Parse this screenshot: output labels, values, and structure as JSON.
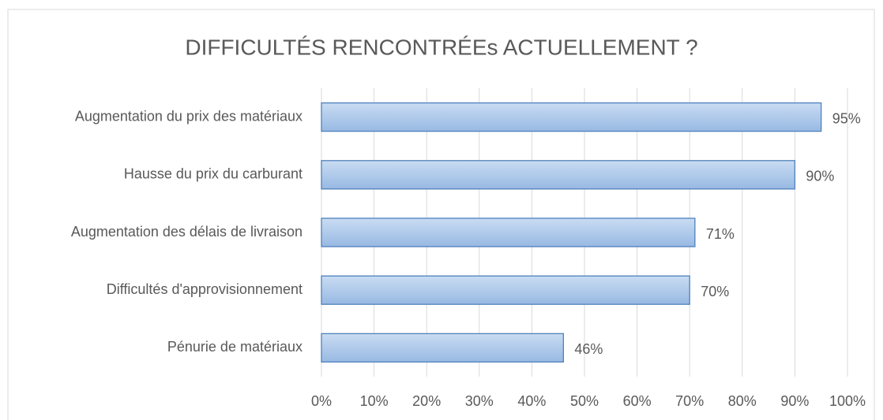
{
  "chart_data": {
    "type": "bar",
    "orientation": "horizontal",
    "title": "DIFFICULTÉS RENCONTRÉEs ACTUELLEMENT ?",
    "categories": [
      "Augmentation du prix des matériaux",
      "Hausse du prix du carburant",
      "Augmentation des délais de livraison",
      "Difficultés d'approvisionnement",
      "Pénurie de matériaux"
    ],
    "values": [
      95,
      90,
      71,
      70,
      46
    ],
    "value_labels": [
      "95%",
      "90%",
      "71%",
      "70%",
      "46%"
    ],
    "color": "#4f81bd",
    "xlim": [
      0,
      100
    ],
    "xticks": [
      {
        "value": 0,
        "label": "0%"
      },
      {
        "value": 10,
        "label": "10%"
      },
      {
        "value": 20,
        "label": "20%"
      },
      {
        "value": 30,
        "label": "30%"
      },
      {
        "value": 40,
        "label": "40%"
      },
      {
        "value": 50,
        "label": "50%"
      },
      {
        "value": 60,
        "label": "60%"
      },
      {
        "value": 70,
        "label": "70%"
      },
      {
        "value": 80,
        "label": "80%"
      },
      {
        "value": 90,
        "label": "90%"
      },
      {
        "value": 100,
        "label": "100%"
      }
    ],
    "grid": true
  }
}
